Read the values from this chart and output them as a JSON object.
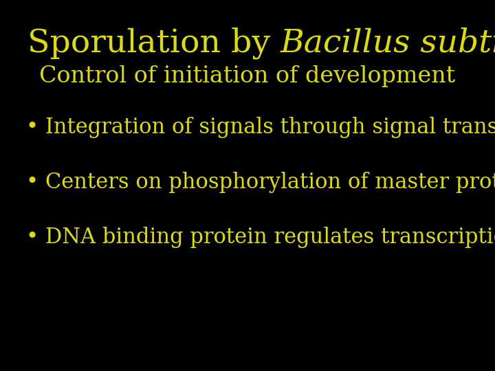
{
  "background_color": "#000000",
  "text_color": "#dddd00",
  "title_normal": "Sporulation by ",
  "title_italic": "Bacillus subtilis",
  "subtitle": "Control of initiation of development",
  "bullets": [
    "Integration of signals through signal transduction",
    "Centers on phosphorylation of master protein",
    "DNA binding protein regulates transcription"
  ],
  "title_fontsize": 34,
  "subtitle_fontsize": 24,
  "bullet_fontsize": 22,
  "bullet_marker": "•"
}
